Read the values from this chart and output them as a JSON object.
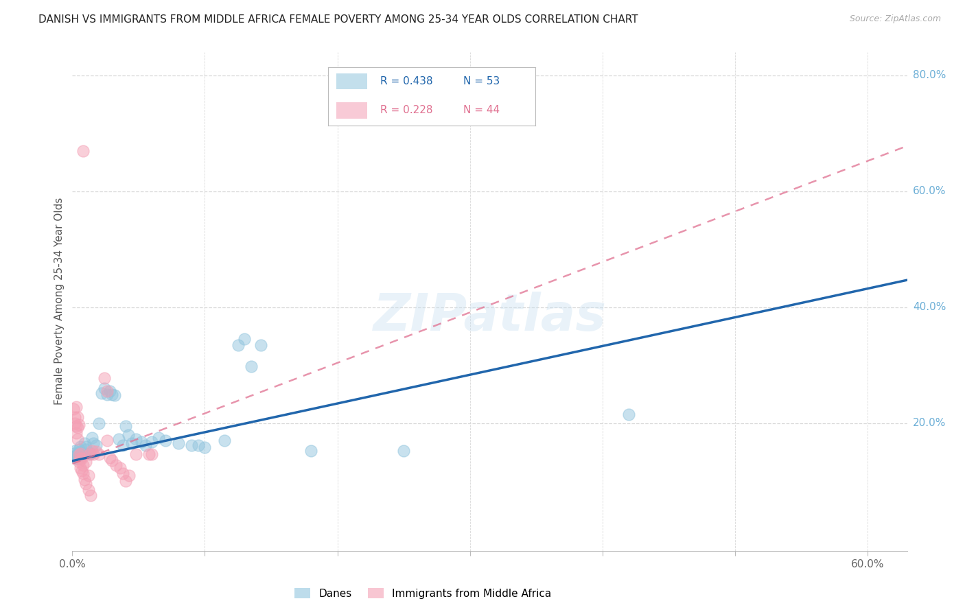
{
  "title": "DANISH VS IMMIGRANTS FROM MIDDLE AFRICA FEMALE POVERTY AMONG 25-34 YEAR OLDS CORRELATION CHART",
  "source": "Source: ZipAtlas.com",
  "ylabel": "Female Poverty Among 25-34 Year Olds",
  "xlim": [
    0.0,
    0.63
  ],
  "ylim": [
    -0.02,
    0.84
  ],
  "xticks": [
    0.0,
    0.1,
    0.2,
    0.3,
    0.4,
    0.5,
    0.6
  ],
  "xticklabels": [
    "0.0%",
    "",
    "",
    "",
    "",
    "",
    "60.0%"
  ],
  "yticks_right": [
    0.2,
    0.4,
    0.6,
    0.8
  ],
  "ytick_right_labels": [
    "20.0%",
    "40.0%",
    "60.0%",
    "80.0%"
  ],
  "danes_color": "#92c5de",
  "immigrants_color": "#f4a0b5",
  "danes_line_color": "#2166ac",
  "immigrants_line_color": "#e07090",
  "danes_scatter": [
    [
      0.001,
      0.148
    ],
    [
      0.002,
      0.143
    ],
    [
      0.002,
      0.152
    ],
    [
      0.003,
      0.14
    ],
    [
      0.003,
      0.145
    ],
    [
      0.004,
      0.142
    ],
    [
      0.004,
      0.138
    ],
    [
      0.005,
      0.155
    ],
    [
      0.005,
      0.15
    ],
    [
      0.006,
      0.148
    ],
    [
      0.006,
      0.16
    ],
    [
      0.007,
      0.145
    ],
    [
      0.007,
      0.143
    ],
    [
      0.008,
      0.147
    ],
    [
      0.009,
      0.165
    ],
    [
      0.01,
      0.155
    ],
    [
      0.01,
      0.16
    ],
    [
      0.012,
      0.148
    ],
    [
      0.013,
      0.148
    ],
    [
      0.014,
      0.148
    ],
    [
      0.015,
      0.175
    ],
    [
      0.016,
      0.165
    ],
    [
      0.018,
      0.162
    ],
    [
      0.02,
      0.2
    ],
    [
      0.022,
      0.252
    ],
    [
      0.024,
      0.26
    ],
    [
      0.026,
      0.25
    ],
    [
      0.028,
      0.255
    ],
    [
      0.03,
      0.25
    ],
    [
      0.032,
      0.248
    ],
    [
      0.035,
      0.172
    ],
    [
      0.038,
      0.162
    ],
    [
      0.04,
      0.195
    ],
    [
      0.042,
      0.18
    ],
    [
      0.045,
      0.165
    ],
    [
      0.048,
      0.172
    ],
    [
      0.052,
      0.168
    ],
    [
      0.055,
      0.162
    ],
    [
      0.06,
      0.168
    ],
    [
      0.065,
      0.175
    ],
    [
      0.07,
      0.17
    ],
    [
      0.08,
      0.165
    ],
    [
      0.09,
      0.162
    ],
    [
      0.095,
      0.162
    ],
    [
      0.1,
      0.158
    ],
    [
      0.115,
      0.17
    ],
    [
      0.125,
      0.335
    ],
    [
      0.13,
      0.345
    ],
    [
      0.135,
      0.298
    ],
    [
      0.142,
      0.335
    ],
    [
      0.18,
      0.152
    ],
    [
      0.25,
      0.152
    ],
    [
      0.42,
      0.215
    ]
  ],
  "immigrants_scatter": [
    [
      0.001,
      0.225
    ],
    [
      0.002,
      0.21
    ],
    [
      0.002,
      0.2
    ],
    [
      0.003,
      0.228
    ],
    [
      0.003,
      0.195
    ],
    [
      0.003,
      0.183
    ],
    [
      0.004,
      0.21
    ],
    [
      0.004,
      0.193
    ],
    [
      0.004,
      0.173
    ],
    [
      0.005,
      0.198
    ],
    [
      0.005,
      0.145
    ],
    [
      0.005,
      0.133
    ],
    [
      0.006,
      0.14
    ],
    [
      0.006,
      0.148
    ],
    [
      0.006,
      0.123
    ],
    [
      0.007,
      0.14
    ],
    [
      0.007,
      0.118
    ],
    [
      0.008,
      0.128
    ],
    [
      0.008,
      0.113
    ],
    [
      0.009,
      0.103
    ],
    [
      0.01,
      0.096
    ],
    [
      0.01,
      0.133
    ],
    [
      0.012,
      0.085
    ],
    [
      0.012,
      0.11
    ],
    [
      0.014,
      0.076
    ],
    [
      0.015,
      0.153
    ],
    [
      0.016,
      0.146
    ],
    [
      0.018,
      0.151
    ],
    [
      0.02,
      0.146
    ],
    [
      0.024,
      0.278
    ],
    [
      0.026,
      0.255
    ],
    [
      0.028,
      0.141
    ],
    [
      0.03,
      0.136
    ],
    [
      0.033,
      0.128
    ],
    [
      0.036,
      0.123
    ],
    [
      0.038,
      0.113
    ],
    [
      0.04,
      0.1
    ],
    [
      0.043,
      0.11
    ],
    [
      0.048,
      0.146
    ],
    [
      0.058,
      0.146
    ],
    [
      0.008,
      0.67
    ],
    [
      0.013,
      0.146
    ],
    [
      0.026,
      0.17
    ],
    [
      0.06,
      0.146
    ]
  ],
  "danes_reg_slope": 0.495,
  "danes_reg_intercept": 0.135,
  "immigrants_reg_slope": 0.87,
  "immigrants_reg_intercept": 0.13,
  "watermark": "ZIPatlas",
  "background_color": "#ffffff",
  "grid_color": "#d8d8d8"
}
